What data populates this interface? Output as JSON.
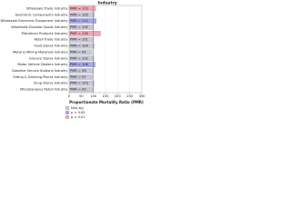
{
  "chart_data": {
    "type": "hbar",
    "title": "Industry",
    "x_label": "Proportionate Mortality Ratio (PMR)",
    "categories": [
      "Wholesale Trade Industry",
      "Electronic Components Industry",
      "Wholesale Electronic Equipment Industry",
      "Wholesale Durable Goods Industry",
      "Petroleum Products Industry",
      "Retail Trade Industry",
      "Food Stores Industry",
      "Metal & Mining Materials Industry",
      "Grocery Stores Industry",
      "Motor Vehicle Dealers Industry",
      "Gasoline Service Stations Industry",
      "Eating & Drinking Places Industry",
      "Drug Stores Industry",
      "Miscellaneous Retail Industry"
    ],
    "values": [
      110,
      105,
      112,
      100,
      130,
      101,
      104,
      95,
      102,
      108,
      98,
      97,
      103,
      99
    ],
    "value_labels": [
      "PMR = 110",
      "PMR = 105",
      "PMR = 112",
      "PMR = 100",
      "PMR = 130",
      "PMR = 101",
      "PMR = 104",
      "PMR = 95",
      "PMR = 102",
      "PMR = 108",
      "PMR = 98",
      "PMR = 97",
      "PMR = 103",
      "PMR = 99"
    ],
    "bar_colors": [
      "#f4a6b4",
      "#c8c8d8",
      "#a8a8f0",
      "#c8c8d8",
      "#f4a6b4",
      "#c8c8d8",
      "#c8c8d8",
      "#c8c8d8",
      "#c8c8d8",
      "#a8a8f0",
      "#c8c8d8",
      "#c8c8d8",
      "#c8c8d8",
      "#c8c8d8"
    ],
    "legend": [
      {
        "name": "Non-sig",
        "color": "#c8c8d8"
      },
      {
        "name": "p < 0.05",
        "color": "#a8a8f0"
      },
      {
        "name": "p < 0.01",
        "color": "#f4a6b4"
      }
    ],
    "xlim": [
      0,
      300
    ],
    "xticks": [
      0,
      50,
      100,
      150,
      200,
      250,
      300
    ],
    "grid": true
  }
}
